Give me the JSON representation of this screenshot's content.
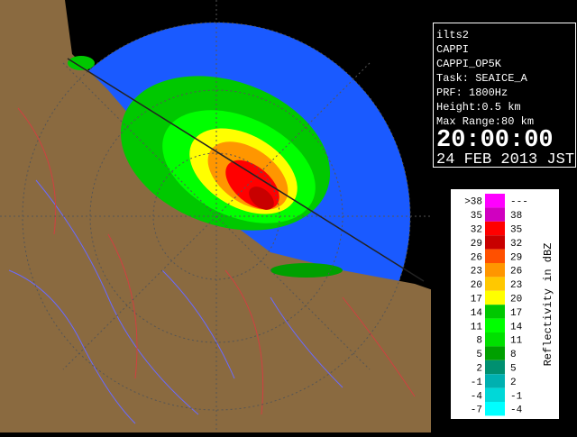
{
  "info": {
    "lines": [
      "ilts2",
      "CAPPI",
      "CAPPI_OP5K",
      "Task: SEAICE_A",
      "PRF: 1800Hz",
      "Height:0.5 km",
      "Max Range:80 km"
    ],
    "time": "20:00:00",
    "date": "24 FEB 2013 JST"
  },
  "legend": {
    "title": "Reflectivity in dBZ",
    "rows": [
      {
        "low": ">38",
        "high": "---",
        "color": "#ff00ff"
      },
      {
        "low": "35",
        "high": "38",
        "color": "#d000c0"
      },
      {
        "low": "32",
        "high": "35",
        "color": "#ff0000"
      },
      {
        "low": "29",
        "high": "32",
        "color": "#c80000"
      },
      {
        "low": "26",
        "high": "29",
        "color": "#ff5000"
      },
      {
        "low": "23",
        "high": "26",
        "color": "#ff9600"
      },
      {
        "low": "20",
        "high": "23",
        "color": "#ffc800"
      },
      {
        "low": "17",
        "high": "20",
        "color": "#ffff00"
      },
      {
        "low": "14",
        "high": "17",
        "color": "#00c800"
      },
      {
        "low": "11",
        "high": "14",
        "color": "#00ff00"
      },
      {
        "low": "8",
        "high": "11",
        "color": "#00e000"
      },
      {
        "low": "5",
        "high": "8",
        "color": "#00a000"
      },
      {
        "low": "2",
        "high": "5",
        "color": "#009070"
      },
      {
        "low": "-1",
        "high": "2",
        "color": "#00b0b0"
      },
      {
        "low": "-4",
        "high": "-1",
        "color": "#00d8d8"
      },
      {
        "low": "-7",
        "high": "-4",
        "color": "#00ffff"
      }
    ]
  }
}
